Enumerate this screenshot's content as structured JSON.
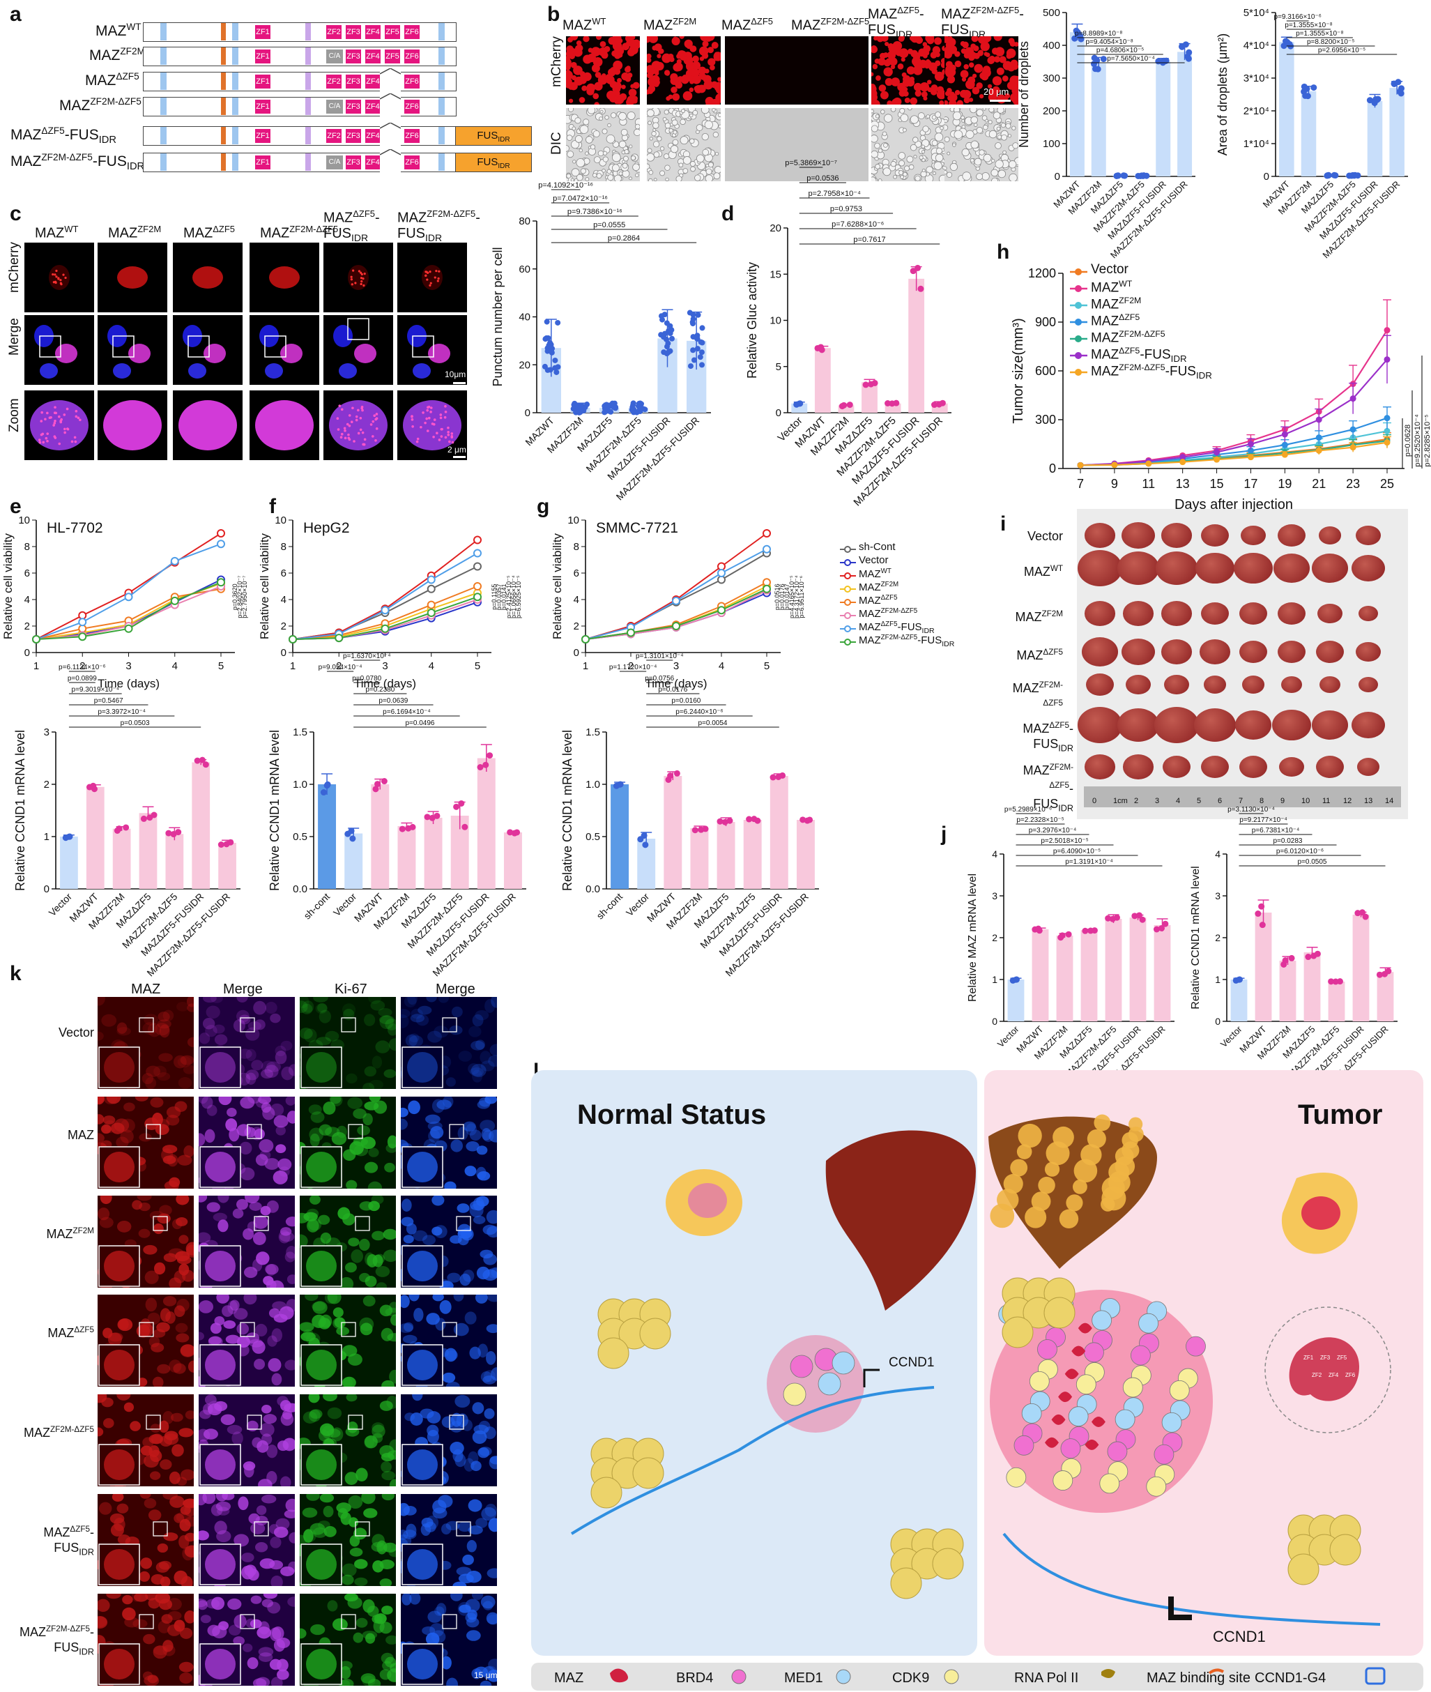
{
  "panels": {
    "a": "a",
    "b": "b",
    "c": "c",
    "d": "d",
    "e": "e",
    "f": "f",
    "g": "g",
    "h": "h",
    "i": "i",
    "j": "j",
    "k": "k",
    "l": "l"
  },
  "panel_a": {
    "constructs": [
      "MAZᵂᵀ",
      "MAZᶠᴮ²ᴹ",
      "MAZᵀᶜᶠ⁵",
      "MAZᶠᴮ²ᴹ⁻ᵀᶜᶠ⁵",
      "MAZ ᵀᶜᶠ⁵-FUSᴵᴰᴿ",
      "MAZᶠᴮ²ᴹ⁻ᵀᶜᶠ⁵-FUSᴵᴰᴿ"
    ],
    "construct_names": [
      "MAZWT",
      "MAZZF2M",
      "MAZΔZF5",
      "MAZZF2M-ΔZF5",
      "MAZ ΔZF5-FUSIDR",
      "MAZZF2M-ΔZF5-FUSIDR"
    ],
    "zf_labels": [
      "ZF1",
      "ZF2",
      "ZF3",
      "ZF4",
      "ZF5",
      "ZF6"
    ],
    "ca_label": "C/A",
    "fus_label": "FUSIDR"
  },
  "panel_b": {
    "columns": [
      "MAZWT",
      "MAZZF2M",
      "MAZΔZF5",
      "MAZZF2M-ΔZF5",
      "MAZ ΔZF5-FUSIDR",
      "MAZZF2M-ΔZF5-FUSIDR"
    ],
    "row_labels": [
      "mCherry",
      "DIC"
    ],
    "scale": "20 μm",
    "chart1": {
      "ylabel": "Number of droplets",
      "yticks": [
        "0",
        "100",
        "200",
        "300",
        "400",
        "500"
      ],
      "pvalues": [
        "p=7.5650×10⁻⁴",
        "p=4.6806×10⁻⁵",
        "p=9.4054×10⁻⁸",
        "p=8.8989×10⁻⁸"
      ]
    },
    "chart2": {
      "ylabel": "Area of droplets (μm²)",
      "yticks": [
        "0",
        "1*10⁴",
        "2*10⁴",
        "3*10⁴",
        "4*10⁴",
        "5*10⁴"
      ],
      "pvalues": [
        "p=2.6956×10⁻⁵",
        "p=8.8200×10⁻⁵",
        "p=1.3555×10⁻⁸",
        "p=1.3555×10⁻⁸",
        "p=9.3166×10⁻⁶"
      ]
    },
    "xlabels": [
      "MAZWT",
      "MAZZF2M",
      "MAZΔZF5",
      "MAZZF2M-ΔZF5",
      "MAZΔZF5-FUSIDR",
      "MAZZF2M-ΔZF5-FUSIDR"
    ]
  },
  "panel_c": {
    "columns": [
      "MAZWT",
      "MAZZF2M",
      "MAZΔZF5",
      "MAZZF2M-ΔZF5",
      "MAZ ΔZF5-FUSIDR",
      "MAZZF2M-ΔZF5-FUSIDR"
    ],
    "row_labels": [
      "mCherry",
      "Merge",
      "Zoom"
    ],
    "scale1": "10μm",
    "scale2": "2 μm",
    "chart": {
      "ylabel": "Punctum number per cell",
      "yticks": [
        "0",
        "20",
        "40",
        "60",
        "80"
      ],
      "pvalues": [
        "p=0.2864",
        "p=0.0555",
        "p=9.7386×10⁻¹⁶",
        "p=7.0472×10⁻¹⁶",
        "p=4.1092×10⁻¹⁶"
      ]
    }
  },
  "panel_d": {
    "ylabel": "Relative Gluc activity",
    "yticks": [
      "0",
      "5",
      "10",
      "15",
      "20"
    ],
    "xlabels": [
      "Vector",
      "MAZWT",
      "MAZZF2M",
      "MAZΔZF5",
      "MAZZF2M-ΔZF5",
      "MAZΔZF5-FUSIDR",
      "MAZZF2M-ΔZF5-FUSIDR"
    ],
    "pvalues": [
      "p=0.7617",
      "p=7.6288×10⁻⁶",
      "p=0.9753",
      "p=2.7958×10⁻⁴",
      "p=0.0536",
      "p=5.3869×10⁻⁷"
    ]
  },
  "panel_h": {
    "ylabel": "Tumor size(mm³)",
    "xlabel": "Days after injection",
    "xticks": [
      "7",
      "9",
      "11",
      "13",
      "15",
      "17",
      "19",
      "21",
      "23",
      "25"
    ],
    "yticks": [
      "0",
      "300",
      "600",
      "900",
      "1200"
    ],
    "legend": [
      "Vector",
      "MAZWT",
      "MAZZF2M",
      "MAZΔZF5",
      "MAZZF2M-ΔZF5",
      "MAZΔZF5-FUSIDR",
      "MAZZF2M-ΔZF5-FUSIDR"
    ],
    "pvalues": [
      "p=0.0628",
      "p=9.2520×10⁻⁴",
      "p=2.8285×10⁻⁵"
    ]
  },
  "panel_i": {
    "row_labels": [
      "Vector",
      "MAZWT",
      "MAZZF2M",
      "MAZΔZF5",
      "MAZZF2M-ΔZF5",
      "MAZΔZF5 -FUSIDR",
      "MAZZF2M-ΔZF5 -FUSIDR"
    ],
    "ruler": [
      "0",
      "1cm",
      "2",
      "3",
      "4",
      "5",
      "6",
      "7",
      "8",
      "9",
      "10",
      "11",
      "12",
      "13",
      "14"
    ]
  },
  "panel_e": {
    "title": "HL-7702",
    "ylabel": "Relative cell viability",
    "xlabel": "Time (days)",
    "xticks": [
      "1",
      "2",
      "3",
      "4",
      "5"
    ],
    "yticks": [
      "0",
      "2",
      "4",
      "6",
      "8",
      "10"
    ],
    "pvalues": [
      "p=0.3620",
      "p=2.8402×10⁻⁷",
      "p=2.7950×10⁻⁷"
    ]
  },
  "panel_f": {
    "title": "HepG2",
    "ylabel": "Relative cell viability",
    "xlabel": "Time (days)",
    "xticks": [
      "1",
      "2",
      "3",
      "4",
      "5"
    ],
    "yticks": [
      "0",
      "2",
      "4",
      "6",
      "8",
      "10"
    ],
    "pvalues": [
      "p=0.1155",
      "p=0.0357",
      "p=0.0141",
      "p=2.4125×10⁻⁵",
      "p=1.0656×10⁻⁴",
      "p=6.5925×10⁻⁵"
    ]
  },
  "panel_g": {
    "title": "SMMC-7721",
    "ylabel": "Relative cell viability",
    "xlabel": "Time (days)",
    "xticks": [
      "1",
      "2",
      "3",
      "4",
      "5"
    ],
    "yticks": [
      "0",
      "2",
      "4",
      "6",
      "8",
      "10"
    ],
    "pvalues": [
      "p=0.0516",
      "p=0.0176",
      "p=0.0147",
      "p=4.4165×10⁻⁵",
      "p=4.3172×10⁻⁴",
      "p=6.9511×10⁻⁶"
    ]
  },
  "legend_efg": [
    "sh-Cont",
    "Vector",
    "MAZWT",
    "MAZZF2M",
    "MAZΔZF5",
    "MAZZF2M-ΔZF5",
    "MAZΔZF5-FUSIDR",
    "MAZZF2M-ΔZF5-FUSIDR"
  ],
  "ccnd_e": {
    "ylabel": "Relative CCND1 mRNA level",
    "yticks": [
      "0",
      "1",
      "2",
      "3"
    ],
    "xlabels": [
      "Vector",
      "MAZWT",
      "MAZZF2M",
      "MAZΔZF5",
      "MAZZF2M-ΔZF5",
      "MAZΔZF5-FUSIDR",
      "MAZZF2M-ΔZF5-FUSIDR"
    ],
    "pvalues": [
      "p=0.0503",
      "p=3.3972×10⁻⁴",
      "p=0.5467",
      "p=9.3019×10⁻⁴",
      "p=0.0899",
      "p=6.1134×10⁻⁶"
    ]
  },
  "ccnd_f": {
    "ylabel": "Relative CCND1 mRNA level",
    "yticks": [
      "0.0",
      "0.5",
      "1.0",
      "1.5"
    ],
    "xlabels": [
      "sh-cont",
      "Vector",
      "MAZWT",
      "MAZZF2M",
      "MAZΔZF5",
      "MAZZF2M-ΔZF5",
      "MAZΔZF5-FUSIDR",
      "MAZZF2M-ΔZF5-FUSIDR"
    ],
    "pvalues": [
      "p=0.0496",
      "p=6.1694×10⁻⁴",
      "p=0.0639",
      "p=0.2380",
      "p=0.0780",
      "p=9.054×10⁻⁴",
      "p=1.6370×10⁻⁴"
    ]
  },
  "ccnd_g": {
    "ylabel": "Relative CCND1 mRNA level",
    "yticks": [
      "0.0",
      "0.5",
      "1.0",
      "1.5"
    ],
    "xlabels": [
      "sh-cont",
      "Vector",
      "MAZWT",
      "MAZZF2M",
      "MAZΔZF5",
      "MAZZF2M-ΔZF5",
      "MAZΔZF5-FUSIDR",
      "MAZZF2M-ΔZF5-FUSIDR"
    ],
    "pvalues": [
      "p=0.0054",
      "p=6.2440×10⁻⁶",
      "p=0.0160",
      "p=0.0176",
      "p=0.0756",
      "p=1.1720×10⁻⁴",
      "p=1.3101×10⁻⁴"
    ]
  },
  "panel_j": {
    "chart1": {
      "ylabel": "Relative MAZ mRNA level",
      "yticks": [
        "0",
        "1",
        "2",
        "3",
        "4"
      ],
      "pvalues": [
        "p=1.3191×10⁻⁴",
        "p=6.4090×10⁻⁵",
        "p=2.5018×10⁻⁵",
        "p=3.2976×10⁻⁴",
        "p=2.2328×10⁻⁵",
        "p=5.2989×10⁻⁶"
      ]
    },
    "chart2": {
      "ylabel": "Relative CCND1 mRNA level",
      "yticks": [
        "0",
        "1",
        "2",
        "3",
        "4"
      ],
      "pvalues": [
        "p=0.0505",
        "p=6.0120×10⁻⁶",
        "p=0.0283",
        "p=6.7381×10⁻⁴",
        "p=9.2177×10⁻⁴",
        "p=3.1130×10⁻⁴"
      ]
    },
    "xlabels": [
      "Vector",
      "MAZWT",
      "MAZZF2M",
      "MAZΔZF5",
      "MAZZF2M-ΔZF5",
      "MAZΔZF5-FUSIDR",
      "MAZZF2M-ΔZF5-FUSIDR"
    ]
  },
  "panel_k": {
    "col_labels": [
      "MAZ",
      "Merge",
      "Ki-67",
      "Merge"
    ],
    "row_labels": [
      "Vector",
      "MAZ",
      "MAZZF2M",
      "MAZΔZF5",
      "MAZZF2M-ΔZF5",
      "MAZΔZF5 -FUSIDR",
      "MAZZF2M-ΔZF5 -FUSIDR"
    ],
    "scale": "15 μm"
  },
  "panel_l": {
    "left_title": "Normal Status",
    "right_title": "Tumor",
    "gene1": "CCND1",
    "gene2": "CCND1",
    "legend": [
      "MAZ",
      "BRD4",
      "MED1",
      "CDK9",
      "RNA Pol II",
      "MAZ binding site",
      "CCND1-G4"
    ],
    "zf_labels": [
      "ZF1",
      "ZF2",
      "ZF3",
      "ZF4",
      "ZF5",
      "ZF6"
    ]
  },
  "chart_data": [
    {
      "type": "bar",
      "title": "",
      "ylabel": "Number of droplets",
      "categories": [
        "MAZWT",
        "MAZZF2M",
        "MAZΔZF5",
        "MAZZF2M-ΔZF5",
        "MAZΔZF5-FUSIDR",
        "MAZZF2M-ΔZF5-FUSIDR"
      ],
      "values": [
        440,
        345,
        2,
        2,
        350,
        380
      ],
      "ylim": [
        0,
        500
      ]
    },
    {
      "type": "bar",
      "title": "",
      "ylabel": "Area of droplets (μm²)",
      "categories": [
        "MAZWT",
        "MAZZF2M",
        "MAZΔZF5",
        "MAZZF2M-ΔZF5",
        "MAZΔZF5-FUSIDR",
        "MAZZF2M-ΔZF5-FUSIDR"
      ],
      "values": [
        41000,
        26000,
        300,
        300,
        23000,
        27000
      ],
      "ylim": [
        0,
        50000
      ]
    },
    {
      "type": "bar",
      "title": "",
      "ylabel": "Punctum number per cell",
      "categories": [
        "MAZWT",
        "MAZZF2M",
        "MAZΔZF5",
        "MAZZF2M-ΔZF5",
        "MAZΔZF5-FUSIDR",
        "MAZZF2M-ΔZF5-FUSIDR"
      ],
      "values": [
        27,
        2,
        2,
        2,
        31,
        30
      ],
      "ylim": [
        0,
        80
      ]
    },
    {
      "type": "bar",
      "title": "",
      "ylabel": "Relative Gluc activity",
      "categories": [
        "Vector",
        "MAZWT",
        "MAZZF2M",
        "MAZΔZF5",
        "MAZZF2M-ΔZF5",
        "MAZΔZF5-FUSIDR",
        "MAZZF2M-ΔZF5-FUSIDR"
      ],
      "values": [
        1,
        7,
        0.8,
        3.3,
        1,
        14.5,
        1
      ],
      "ylim": [
        0,
        20
      ]
    },
    {
      "type": "line",
      "title": "",
      "xlabel": "Days after injection",
      "ylabel": "Tumor size(mm³)",
      "x": [
        7,
        9,
        11,
        13,
        15,
        17,
        19,
        21,
        23,
        25
      ],
      "ylim": [
        0,
        1200
      ],
      "series": [
        {
          "name": "Vector",
          "color": "#f07b22",
          "values": [
            20,
            25,
            35,
            50,
            65,
            80,
            100,
            120,
            150,
            180
          ]
        },
        {
          "name": "MAZWT",
          "color": "#e6338c",
          "values": [
            20,
            30,
            50,
            80,
            110,
            170,
            240,
            350,
            520,
            850
          ]
        },
        {
          "name": "MAZZF2M",
          "color": "#4fc3d6",
          "values": [
            20,
            25,
            35,
            50,
            70,
            90,
            120,
            150,
            190,
            230
          ]
        },
        {
          "name": "MAZΔZF5",
          "color": "#2f8fe0",
          "values": [
            20,
            28,
            40,
            60,
            85,
            110,
            145,
            190,
            240,
            310
          ]
        },
        {
          "name": "MAZZF2M-ΔZF5",
          "color": "#2aab8a",
          "values": [
            20,
            22,
            30,
            45,
            60,
            75,
            95,
            115,
            145,
            170
          ]
        },
        {
          "name": "MAZΔZF5-FUSIDR",
          "color": "#9b30c9",
          "values": [
            20,
            28,
            45,
            70,
            100,
            150,
            210,
            300,
            430,
            670
          ]
        },
        {
          "name": "MAZZF2M-ΔZF5-FUSIDR",
          "color": "#f5a623",
          "values": [
            20,
            22,
            30,
            40,
            55,
            70,
            85,
            110,
            130,
            160
          ]
        }
      ]
    },
    {
      "type": "line",
      "title": "HL-7702",
      "xlabel": "Time (days)",
      "ylabel": "Relative cell viability",
      "x": [
        1,
        2,
        3,
        4,
        5
      ],
      "ylim": [
        0,
        10
      ],
      "series": [
        {
          "name": "Vector",
          "color": "#2a36c9",
          "values": [
            1,
            1.4,
            2,
            3.8,
            5.5
          ]
        },
        {
          "name": "MAZWT",
          "color": "#e02020",
          "values": [
            1,
            2.8,
            4.5,
            6.8,
            9
          ]
        },
        {
          "name": "MAZZF2M",
          "color": "#f2c21e",
          "values": [
            1,
            1.5,
            2.1,
            4,
            5.2
          ]
        },
        {
          "name": "MAZΔZF5",
          "color": "#f07b22",
          "values": [
            1,
            1.8,
            2.4,
            4.2,
            4.8
          ]
        },
        {
          "name": "MAZZF2M-ΔZF5",
          "color": "#e980b0",
          "values": [
            1,
            1.3,
            2,
            3.6,
            5
          ]
        },
        {
          "name": "MAZΔZF5-FUSIDR",
          "color": "#4f9ee8",
          "values": [
            1,
            2.3,
            4.2,
            6.9,
            8.2
          ]
        },
        {
          "name": "MAZZF2M-ΔZF5-FUSIDR",
          "color": "#3aa53a",
          "values": [
            1,
            1.2,
            1.8,
            3.9,
            5.3
          ]
        }
      ]
    },
    {
      "type": "line",
      "title": "HepG2",
      "xlabel": "Time (days)",
      "ylabel": "Relative cell viability",
      "x": [
        1,
        2,
        3,
        4,
        5
      ],
      "ylim": [
        0,
        10
      ],
      "series": [
        {
          "name": "sh-Cont",
          "color": "#666666",
          "values": [
            1,
            1.5,
            3,
            4.8,
            6.5
          ]
        },
        {
          "name": "Vector",
          "color": "#2a36c9",
          "values": [
            1,
            1.1,
            1.6,
            2.6,
            3.8
          ]
        },
        {
          "name": "MAZWT",
          "color": "#e02020",
          "values": [
            1,
            1.5,
            3.3,
            5.8,
            8.5
          ]
        },
        {
          "name": "MAZZF2M",
          "color": "#f2c21e",
          "values": [
            1,
            1.2,
            2,
            3.3,
            4.5
          ]
        },
        {
          "name": "MAZΔZF5",
          "color": "#f07b22",
          "values": [
            1,
            1.3,
            2.2,
            3.6,
            5
          ]
        },
        {
          "name": "MAZZF2M-ΔZF5",
          "color": "#e980b0",
          "values": [
            1,
            1.1,
            1.7,
            2.8,
            4
          ]
        },
        {
          "name": "MAZΔZF5-FUSIDR",
          "color": "#4f9ee8",
          "values": [
            1,
            1.4,
            3.2,
            5.5,
            7.5
          ]
        },
        {
          "name": "MAZZF2M-ΔZF5-FUSIDR",
          "color": "#3aa53a",
          "values": [
            1,
            1.1,
            1.8,
            3,
            4.2
          ]
        }
      ]
    },
    {
      "type": "line",
      "title": "SMMC-7721",
      "xlabel": "Time (days)",
      "ylabel": "Relative cell viability",
      "x": [
        1,
        2,
        3,
        4,
        5
      ],
      "ylim": [
        0,
        10
      ],
      "series": [
        {
          "name": "sh-Cont",
          "color": "#666666",
          "values": [
            1,
            2,
            3.8,
            5.5,
            7.5
          ]
        },
        {
          "name": "Vector",
          "color": "#2a36c9",
          "values": [
            1,
            1.4,
            1.9,
            3,
            4.5
          ]
        },
        {
          "name": "MAZWT",
          "color": "#e02020",
          "values": [
            1,
            2,
            4,
            6.5,
            9
          ]
        },
        {
          "name": "MAZZF2M",
          "color": "#f2c21e",
          "values": [
            1,
            1.5,
            2,
            3.3,
            5
          ]
        },
        {
          "name": "MAZΔZF5",
          "color": "#f07b22",
          "values": [
            1,
            1.5,
            2.1,
            3.5,
            5.3
          ]
        },
        {
          "name": "MAZZF2M-ΔZF5",
          "color": "#e980b0",
          "values": [
            1,
            1.4,
            1.9,
            3,
            4.7
          ]
        },
        {
          "name": "MAZΔZF5-FUSIDR",
          "color": "#4f9ee8",
          "values": [
            1,
            1.9,
            3.9,
            6,
            7.8
          ]
        },
        {
          "name": "MAZZF2M-ΔZF5-FUSIDR",
          "color": "#3aa53a",
          "values": [
            1,
            1.5,
            2,
            3.2,
            4.8
          ]
        }
      ]
    },
    {
      "type": "bar",
      "title": "",
      "ylabel": "Relative CCND1 mRNA level",
      "categories": [
        "Vector",
        "MAZWT",
        "MAZZF2M",
        "MAZΔZF5",
        "MAZZF2M-ΔZF5",
        "MAZΔZF5-FUSIDR",
        "MAZZF2M-ΔZF5-FUSIDR"
      ],
      "values": [
        1,
        1.95,
        1.15,
        1.45,
        1.05,
        2.42,
        0.88
      ],
      "ylim": [
        0,
        3
      ]
    },
    {
      "type": "bar",
      "title": "",
      "ylabel": "Relative CCND1 mRNA level",
      "categories": [
        "sh-cont",
        "Vector",
        "MAZWT",
        "MAZZF2M",
        "MAZΔZF5",
        "MAZZF2M-ΔZF5",
        "MAZΔZF5-FUSIDR",
        "MAZZF2M-ΔZF5-FUSIDR"
      ],
      "values": [
        1,
        0.53,
        1,
        0.6,
        0.68,
        0.7,
        1.25,
        0.54
      ],
      "ylim": [
        0,
        1.5
      ]
    },
    {
      "type": "bar",
      "title": "",
      "ylabel": "Relative CCND1 mRNA level",
      "categories": [
        "sh-cont",
        "Vector",
        "MAZWT",
        "MAZZF2M",
        "MAZΔZF5",
        "MAZZF2M-ΔZF5",
        "MAZΔZF5-FUSIDR",
        "MAZZF2M-ΔZF5-FUSIDR"
      ],
      "values": [
        1,
        0.48,
        1.08,
        0.58,
        0.64,
        0.66,
        1.08,
        0.66
      ],
      "ylim": [
        0,
        1.5
      ]
    },
    {
      "type": "bar",
      "title": "",
      "ylabel": "Relative MAZ mRNA level",
      "categories": [
        "Vector",
        "MAZWT",
        "MAZZF2M",
        "MAZΔZF5",
        "MAZZF2M-ΔZF5",
        "MAZΔZF5-FUSIDR",
        "MAZZF2M-ΔZF5-FUSIDR"
      ],
      "values": [
        1,
        2.2,
        2.05,
        2.18,
        2.45,
        2.48,
        2.3
      ],
      "ylim": [
        0,
        4
      ]
    },
    {
      "type": "bar",
      "title": "",
      "ylabel": "Relative CCND1 mRNA level",
      "categories": [
        "Vector",
        "MAZWT",
        "MAZZF2M",
        "MAZΔZF5",
        "MAZZF2M-ΔZF5",
        "MAZΔZF5-FUSIDR",
        "MAZZF2M-ΔZF5-FUSIDR"
      ],
      "values": [
        1,
        2.6,
        1.45,
        1.65,
        0.95,
        2.55,
        1.18
      ],
      "ylim": [
        0,
        4
      ]
    }
  ]
}
